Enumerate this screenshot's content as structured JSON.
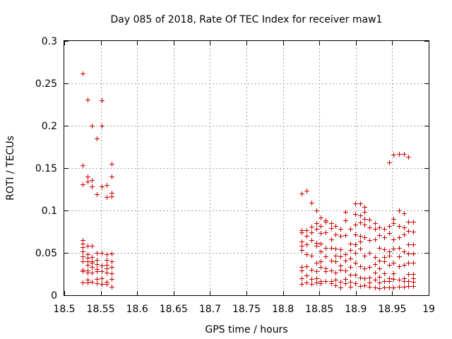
{
  "chart_data": {
    "type": "scatter",
    "title": "Day 085 of 2018, Rate Of TEC Index for receiver maw1",
    "xlabel": "GPS time / hours",
    "ylabel": "ROTI / TECUs",
    "xlim": [
      18.5,
      19.0
    ],
    "ylim": [
      0,
      0.3
    ],
    "xticks": [
      18.5,
      18.55,
      18.6,
      18.65,
      18.7,
      18.75,
      18.8,
      18.85,
      18.9,
      18.95,
      19.0
    ],
    "xtick_labels": [
      "18.5",
      "18.55",
      "18.6",
      "18.65",
      "18.7",
      "18.75",
      "18.8",
      "18.85",
      "18.9",
      "18.95",
      "19"
    ],
    "yticks": [
      0,
      0.05,
      0.1,
      0.15,
      0.2,
      0.25,
      0.3
    ],
    "ytick_labels": [
      "0",
      "0.05",
      "0.1",
      "0.15",
      "0.2",
      "0.25",
      "0.3"
    ],
    "grid": true,
    "marker": "+",
    "color": "#cc0000",
    "series": [
      {
        "name": "ROTI",
        "x": [
          18.525,
          18.525,
          18.525,
          18.525,
          18.525,
          18.525,
          18.525,
          18.525,
          18.525,
          18.525,
          18.525,
          18.525,
          18.532,
          18.532,
          18.532,
          18.532,
          18.532,
          18.532,
          18.532,
          18.532,
          18.532,
          18.532,
          18.532,
          18.532,
          18.538,
          18.538,
          18.538,
          18.538,
          18.538,
          18.538,
          18.538,
          18.538,
          18.538,
          18.538,
          18.545,
          18.545,
          18.545,
          18.545,
          18.545,
          18.545,
          18.545,
          18.545,
          18.545,
          18.551,
          18.551,
          18.551,
          18.551,
          18.551,
          18.551,
          18.551,
          18.551,
          18.558,
          18.558,
          18.558,
          18.558,
          18.558,
          18.558,
          18.558,
          18.558,
          18.558,
          18.565,
          18.565,
          18.565,
          18.565,
          18.565,
          18.565,
          18.565,
          18.565,
          18.565,
          18.565,
          18.826,
          18.826,
          18.826,
          18.826,
          18.826,
          18.826,
          18.826,
          18.826,
          18.826,
          18.826,
          18.832,
          18.832,
          18.832,
          18.832,
          18.832,
          18.832,
          18.832,
          18.832,
          18.839,
          18.839,
          18.839,
          18.839,
          18.839,
          18.839,
          18.839,
          18.839,
          18.846,
          18.846,
          18.846,
          18.846,
          18.846,
          18.846,
          18.846,
          18.846,
          18.846,
          18.852,
          18.852,
          18.852,
          18.852,
          18.852,
          18.852,
          18.852,
          18.852,
          18.852,
          18.859,
          18.859,
          18.859,
          18.859,
          18.859,
          18.859,
          18.859,
          18.859,
          18.866,
          18.866,
          18.866,
          18.866,
          18.866,
          18.866,
          18.866,
          18.866,
          18.872,
          18.872,
          18.872,
          18.872,
          18.872,
          18.872,
          18.872,
          18.872,
          18.879,
          18.879,
          18.879,
          18.879,
          18.879,
          18.879,
          18.879,
          18.879,
          18.886,
          18.886,
          18.886,
          18.886,
          18.886,
          18.886,
          18.886,
          18.886,
          18.892,
          18.892,
          18.892,
          18.892,
          18.892,
          18.892,
          18.892,
          18.892,
          18.899,
          18.899,
          18.899,
          18.899,
          18.899,
          18.899,
          18.899,
          18.899,
          18.899,
          18.906,
          18.906,
          18.906,
          18.906,
          18.906,
          18.906,
          18.906,
          18.906,
          18.906,
          18.912,
          18.912,
          18.912,
          18.912,
          18.912,
          18.912,
          18.912,
          18.912,
          18.912,
          18.919,
          18.919,
          18.919,
          18.919,
          18.919,
          18.919,
          18.919,
          18.919,
          18.926,
          18.926,
          18.926,
          18.926,
          18.926,
          18.926,
          18.926,
          18.926,
          18.932,
          18.932,
          18.932,
          18.932,
          18.932,
          18.932,
          18.932,
          18.932,
          18.939,
          18.939,
          18.939,
          18.939,
          18.939,
          18.939,
          18.939,
          18.939,
          18.946,
          18.946,
          18.946,
          18.946,
          18.946,
          18.946,
          18.946,
          18.946,
          18.946,
          18.952,
          18.952,
          18.952,
          18.952,
          18.952,
          18.952,
          18.952,
          18.952,
          18.952,
          18.959,
          18.959,
          18.959,
          18.959,
          18.959,
          18.959,
          18.959,
          18.959,
          18.959,
          18.966,
          18.966,
          18.966,
          18.966,
          18.966,
          18.966,
          18.966,
          18.966,
          18.966,
          18.972,
          18.972,
          18.972,
          18.972,
          18.972,
          18.972,
          18.972,
          18.972,
          18.972,
          18.979,
          18.979,
          18.979,
          18.979,
          18.979,
          18.979,
          18.979,
          18.979,
          18.979
        ],
        "y": [
          0.262,
          0.153,
          0.131,
          0.065,
          0.061,
          0.057,
          0.052,
          0.046,
          0.04,
          0.03,
          0.028,
          0.015,
          0.231,
          0.14,
          0.134,
          0.058,
          0.048,
          0.044,
          0.04,
          0.036,
          0.029,
          0.027,
          0.018,
          0.015,
          0.2,
          0.136,
          0.128,
          0.058,
          0.045,
          0.04,
          0.038,
          0.033,
          0.027,
          0.016,
          0.185,
          0.119,
          0.05,
          0.042,
          0.037,
          0.031,
          0.028,
          0.019,
          0.014,
          0.2,
          0.23,
          0.128,
          0.05,
          0.035,
          0.028,
          0.02,
          0.013,
          0.13,
          0.116,
          0.048,
          0.042,
          0.036,
          0.032,
          0.027,
          0.016,
          0.013,
          0.155,
          0.14,
          0.121,
          0.117,
          0.049,
          0.04,
          0.033,
          0.026,
          0.019,
          0.01,
          0.12,
          0.077,
          0.074,
          0.063,
          0.058,
          0.053,
          0.033,
          0.029,
          0.02,
          0.013,
          0.123,
          0.077,
          0.07,
          0.06,
          0.048,
          0.034,
          0.023,
          0.015,
          0.109,
          0.081,
          0.074,
          0.065,
          0.047,
          0.03,
          0.019,
          0.013,
          0.1,
          0.085,
          0.078,
          0.062,
          0.058,
          0.038,
          0.028,
          0.02,
          0.015,
          0.092,
          0.082,
          0.073,
          0.061,
          0.052,
          0.04,
          0.033,
          0.017,
          0.014,
          0.088,
          0.087,
          0.074,
          0.056,
          0.046,
          0.032,
          0.028,
          0.017,
          0.085,
          0.079,
          0.066,
          0.056,
          0.041,
          0.029,
          0.017,
          0.014,
          0.082,
          0.072,
          0.055,
          0.047,
          0.04,
          0.027,
          0.018,
          0.012,
          0.078,
          0.07,
          0.054,
          0.046,
          0.035,
          0.03,
          0.016,
          0.009,
          0.098,
          0.088,
          0.071,
          0.048,
          0.041,
          0.029,
          0.019,
          0.014,
          0.078,
          0.061,
          0.053,
          0.043,
          0.033,
          0.024,
          0.016,
          0.01,
          0.108,
          0.096,
          0.083,
          0.072,
          0.06,
          0.05,
          0.038,
          0.024,
          0.014,
          0.108,
          0.094,
          0.086,
          0.07,
          0.063,
          0.055,
          0.034,
          0.021,
          0.011,
          0.104,
          0.098,
          0.09,
          0.083,
          0.068,
          0.047,
          0.032,
          0.02,
          0.012,
          0.089,
          0.08,
          0.065,
          0.05,
          0.033,
          0.021,
          0.015,
          0.01,
          0.085,
          0.078,
          0.066,
          0.045,
          0.037,
          0.027,
          0.018,
          0.009,
          0.08,
          0.071,
          0.056,
          0.041,
          0.032,
          0.022,
          0.015,
          0.008,
          0.078,
          0.068,
          0.054,
          0.045,
          0.04,
          0.026,
          0.017,
          0.009,
          0.157,
          0.082,
          0.073,
          0.052,
          0.047,
          0.036,
          0.02,
          0.017,
          0.009,
          0.166,
          0.09,
          0.085,
          0.066,
          0.055,
          0.038,
          0.026,
          0.019,
          0.009,
          0.167,
          0.1,
          0.082,
          0.068,
          0.056,
          0.046,
          0.034,
          0.018,
          0.01,
          0.167,
          0.097,
          0.08,
          0.072,
          0.052,
          0.036,
          0.02,
          0.017,
          0.01,
          0.163,
          0.087,
          0.076,
          0.06,
          0.049,
          0.038,
          0.025,
          0.017,
          0.011,
          0.087,
          0.075,
          0.06,
          0.049,
          0.038,
          0.025,
          0.02,
          0.016,
          0.011
        ]
      }
    ]
  }
}
